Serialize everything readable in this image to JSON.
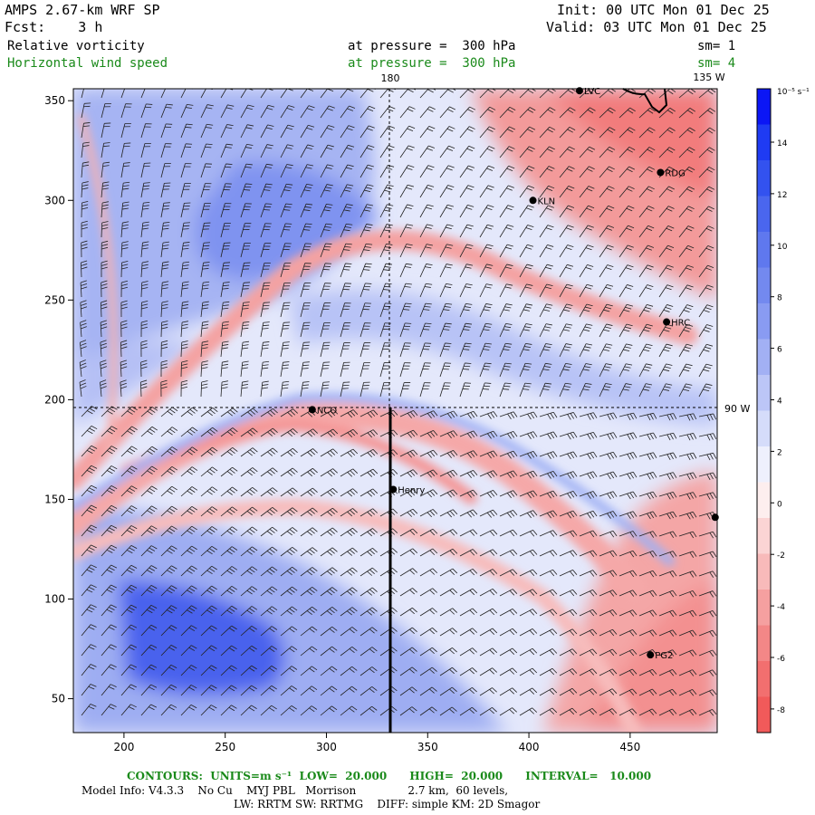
{
  "header": {
    "model": "AMPS 2.67-km WRF SP",
    "fcst": "Fcst:    3 h",
    "init": "Init: 00 UTC Mon 01 Dec 25",
    "valid": "Valid: 03 UTC Mon 01 Dec 25",
    "field1": "Relative vorticity",
    "field1_level": "at pressure =  300 hPa",
    "field1_sm": "sm= 1",
    "field2": "Horizontal wind speed",
    "field2_level": "at pressure =  300 hPa",
    "field2_sm": "sm= 4"
  },
  "map": {
    "x_ticks": [
      "200",
      "250",
      "300",
      "350",
      "400",
      "450"
    ],
    "y_ticks": [
      "350",
      "300",
      "250",
      "200",
      "150",
      "100",
      "50"
    ],
    "lon_labels": {
      "top_180": "180",
      "top_135w": "135 W",
      "right_90w": "90 W"
    },
    "stations": [
      {
        "name": "LVC",
        "x": 425,
        "y": 355
      },
      {
        "name": "RDG",
        "x": 465,
        "y": 314
      },
      {
        "name": "KLN",
        "x": 402,
        "y": 300
      },
      {
        "name": "HRC",
        "x": 468,
        "y": 239
      },
      {
        "name": "NCO",
        "x": 293,
        "y": 195
      },
      {
        "name": "Henry",
        "x": 333,
        "y": 155
      },
      {
        "name": "",
        "x": 492,
        "y": 141
      },
      {
        "name": "PG2",
        "x": 460,
        "y": 72
      }
    ],
    "cross_section_x": 334,
    "lat_lines": {
      "vertical_x": 334,
      "horizontal_y": 196
    }
  },
  "colorbar": {
    "units": "10⁻⁵ s⁻¹",
    "labels": [
      "14",
      "12",
      "10",
      "8",
      "6",
      "4",
      "2",
      "0",
      "-2",
      "-4",
      "-6",
      "-8"
    ],
    "colors": [
      "#0b16f5",
      "#1f3bf3",
      "#3352ef",
      "#4a66ee",
      "#5f78ee",
      "#7389ef",
      "#899bf2",
      "#a2b0f4",
      "#bcc6f7",
      "#d5dcfa",
      "#eef0fd",
      "#fdeeee",
      "#fbd4d4",
      "#f8baba",
      "#f5a0a0",
      "#f38787",
      "#f26f6f",
      "#f15a5a"
    ]
  },
  "footer": {
    "contours": "CONTOURS:  UNITS=m s⁻¹  LOW=  20.000      HIGH=  20.000      INTERVAL=   10.000",
    "model_info": "Model Info: V4.3.3    No Cu    MYJ PBL   Morrison               2.7 km,  60 levels,",
    "model_info2": "LW: RRTM SW: RRTMG    DIFF: simple KM: 2D Smagor"
  }
}
